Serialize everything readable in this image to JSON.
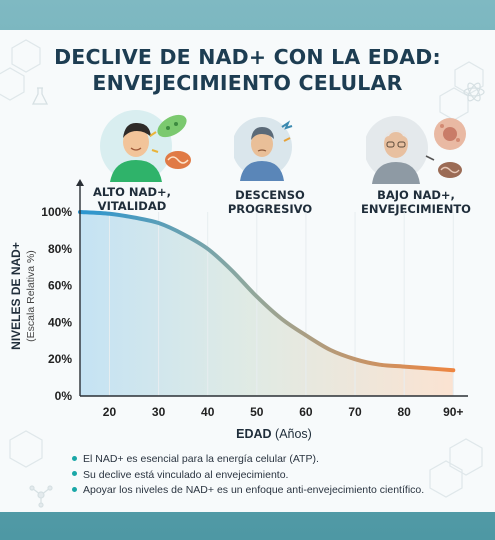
{
  "title": "DECLIVE DE NAD+ CON LA EDAD: ENVEJECIMIENTO CELULAR",
  "stages": [
    {
      "icon": "young-person-icon",
      "label": "ALTO NAD+, VITALIDAD"
    },
    {
      "icon": "middle-aged-person-icon",
      "label": "DESCENSO PROGRESIVO"
    },
    {
      "icon": "elderly-person-icon",
      "label": "BAJO NAD+, ENVEJECIMIENTO"
    }
  ],
  "chart_data": {
    "type": "area",
    "ylabel_main": "NIVELES DE NAD+",
    "ylabel_sub": "(Escala Relativa %)",
    "xlabel_main": "EDAD",
    "xlabel_sub": "(Años)",
    "x_ticks": [
      "20",
      "30",
      "40",
      "50",
      "60",
      "70",
      "80",
      "90+"
    ],
    "y_ticks": [
      "0%",
      "20%",
      "40%",
      "60%",
      "80%",
      "100%"
    ],
    "ylim": [
      0,
      100
    ],
    "xlim": [
      14,
      93
    ],
    "grid": "vertical",
    "series": [
      {
        "x": [
          14,
          20,
          25,
          30,
          35,
          40,
          45,
          50,
          55,
          60,
          65,
          70,
          75,
          80,
          85,
          90
        ],
        "values": [
          100,
          99,
          97,
          94,
          88,
          80,
          68,
          54,
          42,
          33,
          25,
          20,
          17,
          16,
          15,
          14
        ]
      }
    ],
    "colors": {
      "start": "#2a95d0",
      "mid": "#8fa89e",
      "end": "#ee8540"
    }
  },
  "bullets": [
    "El NAD+ es esencial para la energía celular (ATP).",
    "Su declive está vinculado al envejecimiento.",
    "Apoyar los niveles de NAD+ es un enfoque anti-envejecimiento científico."
  ]
}
